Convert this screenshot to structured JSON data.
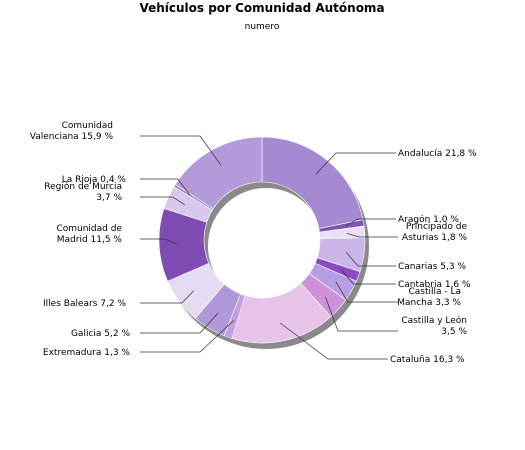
{
  "chart_data": {
    "type": "pie",
    "title": "Vehículos por Comunidad Autónoma",
    "subtitle": "numero",
    "unit": "%",
    "colors": {
      "Andalucía": "#a58ad1",
      "Aragón": "#7e55b5",
      "Principado de Asturias": "#eadff5",
      "Canarias": "#cbb5e6",
      "Cantabria": "#8a4cbf",
      "Castilla - La Mancha": "#b79ee3",
      "Castilla y León": "#cc91d9",
      "Cataluña": "#e7c3e9",
      "Extremadura": "#c49ee0",
      "Galicia": "#b097d9",
      "Illes Balears": "#e6dcf2",
      "Comunidad de Madrid": "#7e4cb3",
      "Región de Murcia": "#d8c8ec",
      "La Rioja": "#9b7ec8",
      "Comunidad Valenciana": "#b59ad9"
    },
    "slices": [
      {
        "label": "Andalucía",
        "value": 21.8,
        "text": "Andalucía 21,8 %"
      },
      {
        "label": "Aragón",
        "value": 1.0,
        "text": "Aragón 1,0 %"
      },
      {
        "label": "Principado de Asturias",
        "value": 1.8,
        "text": "Principado de\nAsturias 1,8 %"
      },
      {
        "label": "Canarias",
        "value": 5.3,
        "text": "Canarias 5,3 %"
      },
      {
        "label": "Cantabria",
        "value": 1.6,
        "text": "Cantabria 1,6 %"
      },
      {
        "label": "Castilla - La Mancha",
        "value": 3.3,
        "text": "Castilla - La\nMancha 3,3 %"
      },
      {
        "label": "Castilla y León",
        "value": 3.5,
        "text": "Castilla y León\n3,5 %"
      },
      {
        "label": "Cataluña",
        "value": 16.3,
        "text": "Cataluña 16,3 %"
      },
      {
        "label": "Extremadura",
        "value": 1.3,
        "text": "Extremadura 1,3 %"
      },
      {
        "label": "Galicia",
        "value": 5.2,
        "text": "Galicia 5,2 %"
      },
      {
        "label": "Illes Balears",
        "value": 7.2,
        "text": "Illes Balears 7,2 %"
      },
      {
        "label": "Comunidad de Madrid",
        "value": 11.5,
        "text": "Comunidad de\nMadrid 11,5 %"
      },
      {
        "label": "Región de Murcia",
        "value": 3.7,
        "text": "Región de Murcia\n3,7 %"
      },
      {
        "label": "La Rioja",
        "value": 0.4,
        "text": "La Rioja 0,4 %"
      },
      {
        "label": "Comunidad Valenciana",
        "value": 15.9,
        "text": "Comunidad\nValenciana 15,9 %"
      }
    ]
  }
}
